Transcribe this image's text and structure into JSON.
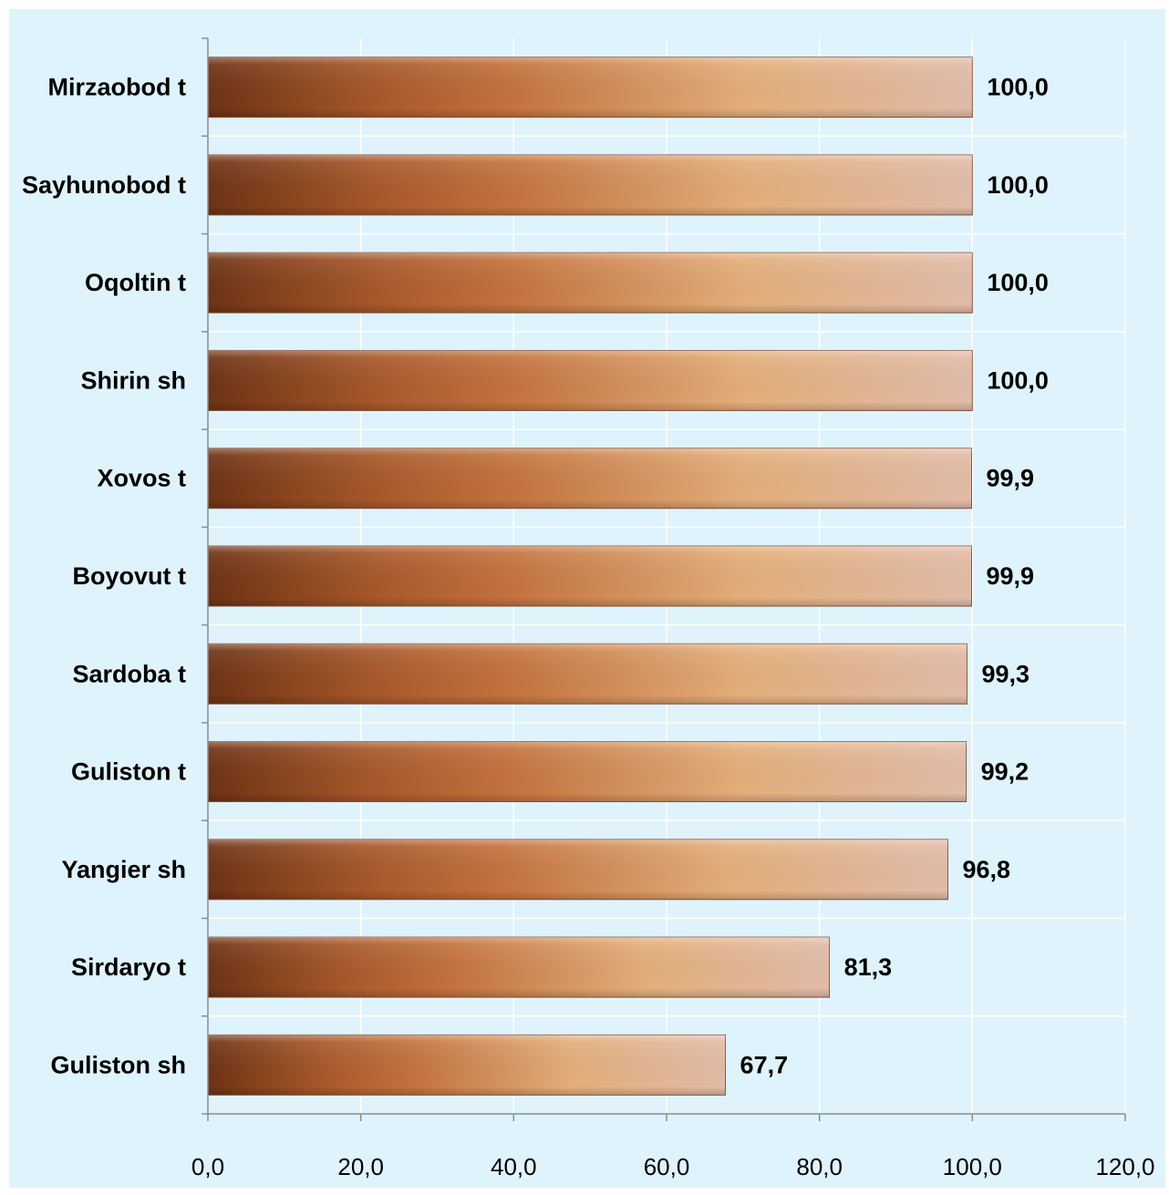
{
  "chart_data": {
    "type": "bar",
    "orientation": "horizontal",
    "categories": [
      "Mirzaobod t",
      "Sayhunobod t",
      "Oqoltin t",
      "Shirin sh",
      "Xovos t",
      "Boyovut t",
      "Sardoba t",
      "Guliston t",
      "Yangier sh",
      "Sirdaryo t",
      "Guliston sh"
    ],
    "values": [
      100.0,
      100.0,
      100.0,
      100.0,
      99.9,
      99.9,
      99.3,
      99.2,
      96.8,
      81.3,
      67.7
    ],
    "value_labels": [
      "100,0",
      "100,0",
      "100,0",
      "100,0",
      "99,9",
      "99,9",
      "99,3",
      "99,2",
      "96,8",
      "81,3",
      "67,7"
    ],
    "x_ticks": [
      "0,0",
      "20,0",
      "40,0",
      "60,0",
      "80,0",
      "100,0",
      "120,0"
    ],
    "xlim": [
      0,
      120
    ],
    "title": "",
    "xlabel": "",
    "ylabel": "",
    "grid": "vertical",
    "legend": "none",
    "colors": {
      "background": "#dff3fd",
      "gridline": "#ffffff",
      "axis": "#8c8c8c",
      "bar_dark": "#7a3a18",
      "bar_mid": "#c8763f",
      "bar_light": "#e9b07c",
      "bar_end": "#e4bba5"
    }
  }
}
